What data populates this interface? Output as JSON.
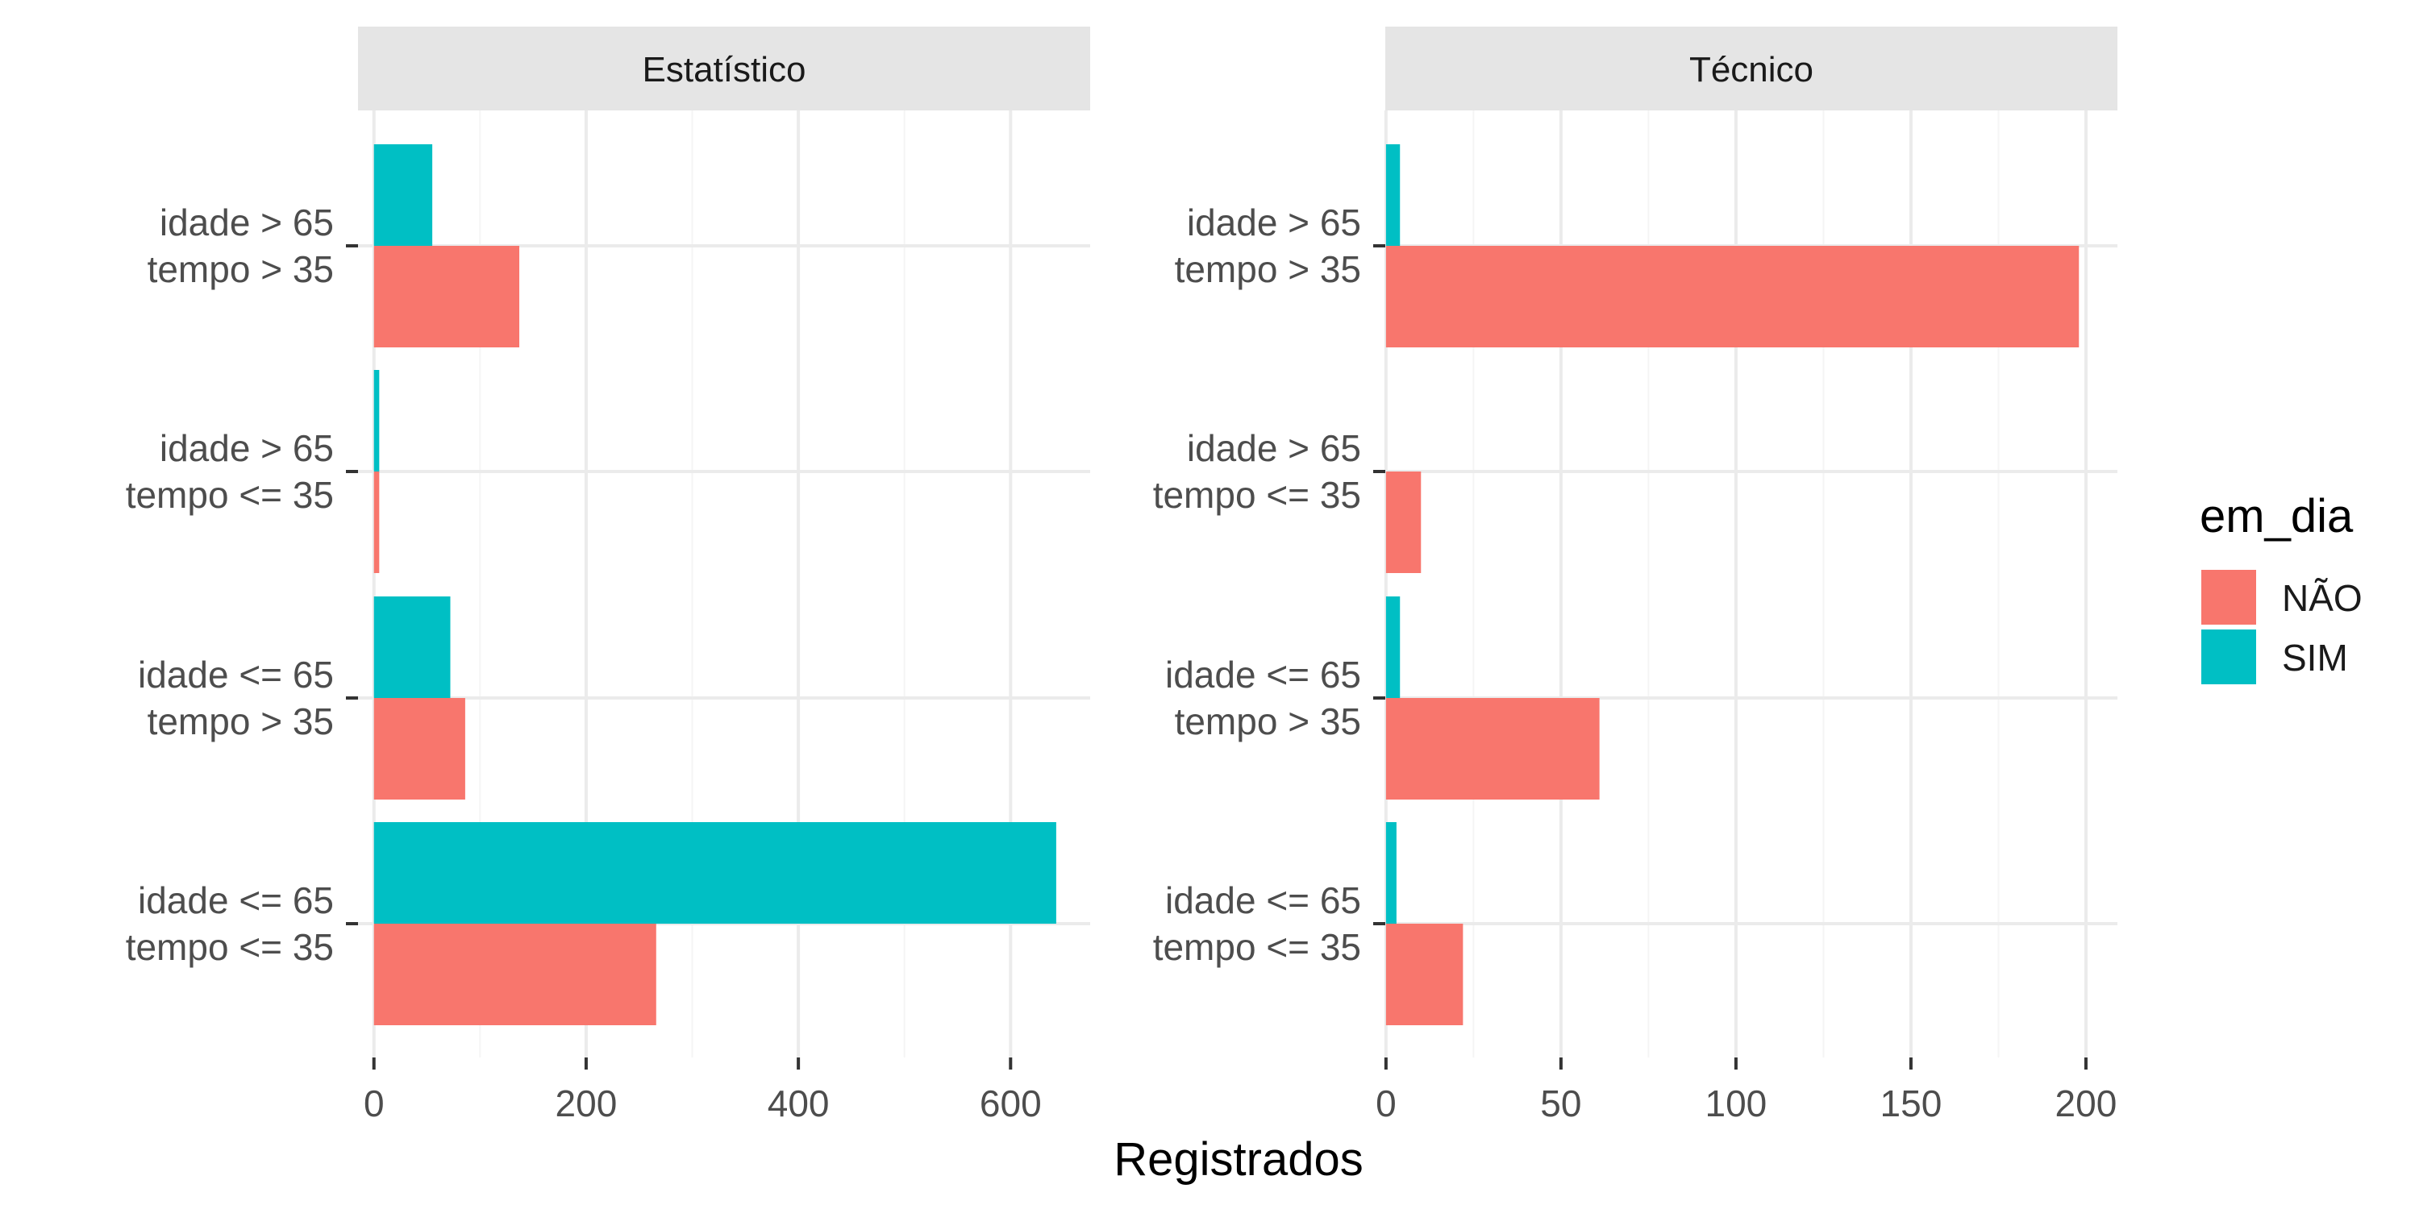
{
  "chart_data": {
    "type": "bar",
    "orientation": "horizontal",
    "facet_layout": "columns",
    "categories": [
      [
        "idade > 65",
        "tempo > 35"
      ],
      [
        "idade > 65",
        "tempo <= 35"
      ],
      [
        "idade <= 65",
        "tempo > 35"
      ],
      [
        "idade <= 65",
        "tempo <= 35"
      ]
    ],
    "xlabel": "Registrados",
    "ylabel": "",
    "legend": {
      "title": "em_dia",
      "placement": "right",
      "entries": [
        {
          "name": "NÃO",
          "color": "#F8766D"
        },
        {
          "name": "SIM",
          "color": "#00BFC4"
        }
      ]
    },
    "grid": true,
    "facets": [
      {
        "title": "Estatístico",
        "xlim": [
          -15,
          675
        ],
        "ticks": [
          0,
          200,
          400,
          600
        ],
        "series": [
          {
            "name": "NÃO",
            "values": [
              137,
              5,
              86,
              266
            ]
          },
          {
            "name": "SIM",
            "values": [
              55,
              5,
              72,
              643
            ]
          }
        ]
      },
      {
        "title": "Técnico",
        "xlim": [
          -0.2,
          209
        ],
        "ticks": [
          0,
          50,
          100,
          150,
          200
        ],
        "series": [
          {
            "name": "NÃO",
            "values": [
              198,
              10,
              61,
              22
            ]
          },
          {
            "name": "SIM",
            "values": [
              4,
              0,
              4,
              3
            ]
          }
        ]
      }
    ]
  },
  "colors": {
    "strip_bg": "#e5e5e5",
    "grid_major": "#ebebeb",
    "grid_minor": "#f5f5f5",
    "tick_mark": "#333333"
  }
}
